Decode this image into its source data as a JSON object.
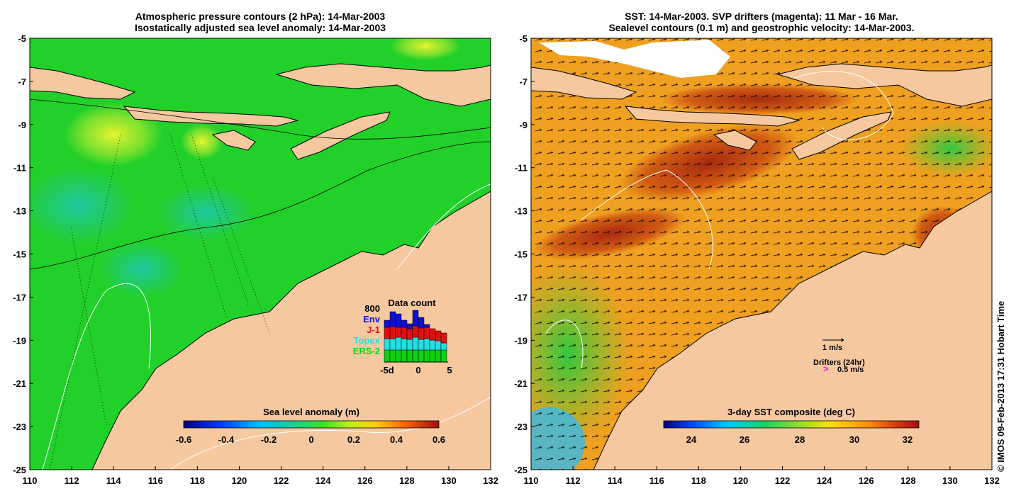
{
  "left_panel": {
    "title_line1": "Atmospheric pressure contours (2 hPa): 14-Mar-2003",
    "title_line2": "Isostatically adjusted sea level anomaly: 14-Mar-2003",
    "colorbar_label": "Sea level anomaly (m)",
    "colorbar_ticks": [
      "-0.6",
      "-0.4",
      "-0.2",
      "0",
      "0.2",
      "0.4",
      "0.6"
    ],
    "data_count": {
      "title": "Data count",
      "max_label": "800",
      "legend": [
        {
          "name": "Env",
          "color": "#1010d0"
        },
        {
          "name": "J-1",
          "color": "#e01010"
        },
        {
          "name": "Topex",
          "color": "#20e0e0"
        },
        {
          "name": "ERS-2",
          "color": "#10d010"
        }
      ],
      "xticks": [
        "-5d",
        "0",
        "5"
      ]
    }
  },
  "right_panel": {
    "title_line1": "SST: 14-Mar-2003. SVP drifters (magenta): 11 Mar - 16 Mar.",
    "title_line2": "Sealevel contours (0.1 m) and geostrophic velocity: 14-Mar-2003.",
    "colorbar_label": "3-day SST composite (deg C)",
    "colorbar_ticks": [
      "24",
      "26",
      "28",
      "30",
      "32"
    ],
    "velocity_scale_label": "1 m/s",
    "drifters_label": "Drifters (24hr)",
    "drifter_speed_label": "0.5 m/s",
    "drifter_symbol": ">"
  },
  "axes": {
    "y_ticks": [
      "-5",
      "-7",
      "-9",
      "-11",
      "-13",
      "-15",
      "-17",
      "-19",
      "-21",
      "-23",
      "-25"
    ],
    "x_ticks": [
      "110",
      "112",
      "114",
      "116",
      "118",
      "120",
      "122",
      "124",
      "126",
      "128",
      "130",
      "132"
    ]
  },
  "credit": "© IMOS 09-Feb-2013 17:31 Hobart Time",
  "colors": {
    "land": "#f5c8a0",
    "ocean_left": "#22d02a",
    "ocean_right": "#f0a020"
  }
}
